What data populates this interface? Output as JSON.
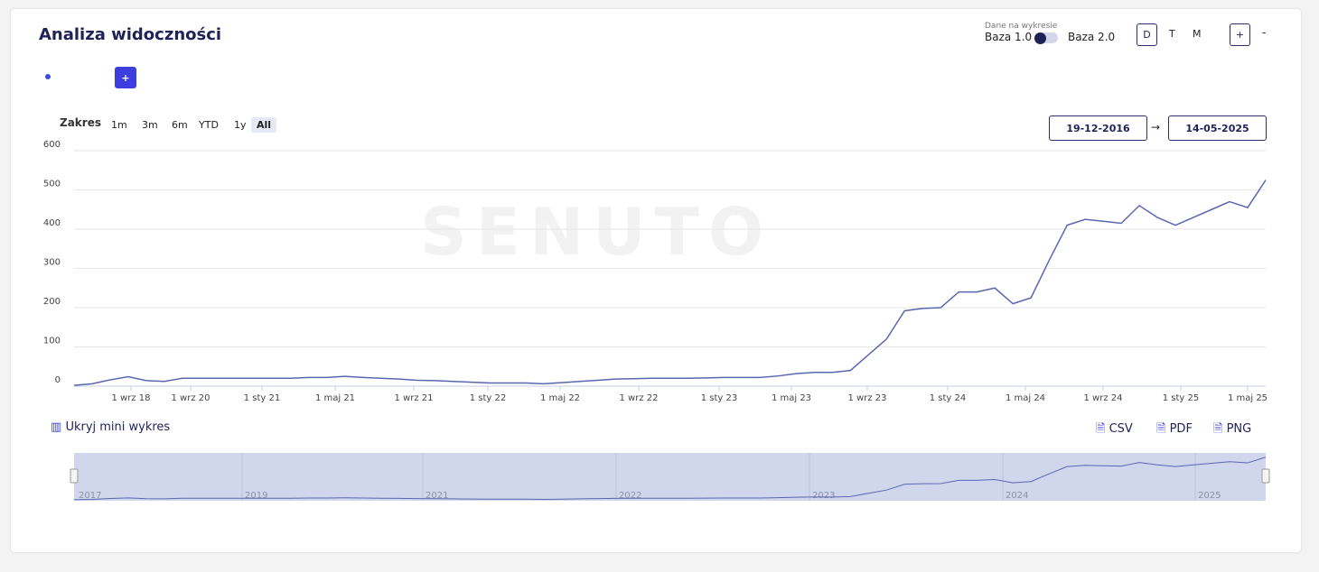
{
  "header": {
    "title": "Analiza widoczności",
    "data_source_label": "Dane na wykresie",
    "base_left": "Baza 1.0",
    "base_right": "Baza 2.0",
    "periods": [
      "D",
      "T",
      "M"
    ],
    "zoom_in": "+",
    "zoom_out": "-",
    "add_button": "+"
  },
  "range": {
    "label": "Zakres",
    "buttons": [
      "1m",
      "3m",
      "6m",
      "YTD",
      "1y",
      "All"
    ],
    "active": "All",
    "date_from": "19-12-2016",
    "arrow": "→",
    "date_to": "14-05-2025"
  },
  "chart_data": {
    "type": "line",
    "watermark": "SENUTO",
    "ylim": [
      0,
      600
    ],
    "yticks": [
      0,
      100,
      200,
      300,
      400,
      500,
      600
    ],
    "grid": true,
    "x_tick_labels": [
      "1 wrz 18",
      "1 wrz 20",
      "1 sty 21",
      "1 maj 21",
      "1 wrz 21",
      "1 sty 22",
      "1 maj 22",
      "1 wrz 22",
      "1 sty 23",
      "1 maj 23",
      "1 wrz 23",
      "1 sty 24",
      "1 maj 24",
      "1 wrz 24",
      "1 sty 25",
      "1 maj 25"
    ],
    "series": [
      {
        "color": "#5a67b0",
        "values": [
          2,
          6,
          16,
          24,
          14,
          12,
          20,
          20,
          20,
          20,
          20,
          20,
          20,
          22,
          22,
          25,
          22,
          20,
          18,
          15,
          14,
          12,
          10,
          8,
          8,
          8,
          6,
          9,
          12,
          15,
          18,
          19,
          20,
          20,
          20,
          21,
          22,
          22,
          22,
          26,
          32,
          35,
          35,
          40,
          80,
          120,
          192,
          198,
          200,
          240,
          240,
          250,
          210,
          225,
          320,
          410,
          425,
          420,
          415,
          460,
          430,
          410,
          430,
          450,
          470,
          455,
          525
        ]
      }
    ]
  },
  "navigator": {
    "toggle": "Ukryj mini wykres",
    "labels": [
      "2017",
      "2019",
      "2021",
      "2022",
      "2023",
      "2024",
      "2025"
    ]
  },
  "export": {
    "buttons": [
      "CSV",
      "PDF",
      "PNG"
    ]
  }
}
